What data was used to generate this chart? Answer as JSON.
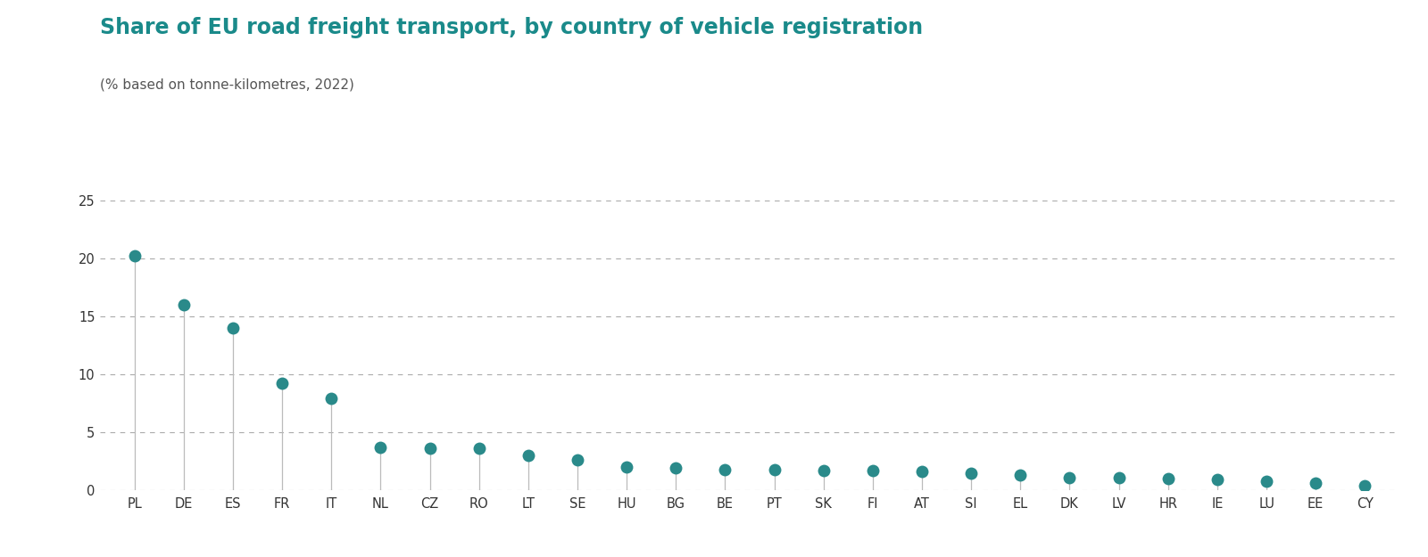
{
  "title": "Share of EU road freight transport, by country of vehicle registration",
  "subtitle": "(% based on tonne-kilometres, 2022)",
  "title_color": "#1a8a8a",
  "subtitle_color": "#555555",
  "categories": [
    "PL",
    "DE",
    "ES",
    "FR",
    "IT",
    "NL",
    "CZ",
    "RO",
    "LT",
    "SE",
    "HU",
    "BG",
    "BE",
    "PT",
    "SK",
    "FI",
    "AT",
    "SI",
    "EL",
    "DK",
    "LV",
    "HR",
    "IE",
    "LU",
    "EE",
    "CY"
  ],
  "values": [
    20.2,
    16.0,
    14.0,
    9.2,
    7.9,
    3.7,
    3.6,
    3.6,
    3.0,
    2.6,
    2.0,
    1.9,
    1.8,
    1.8,
    1.7,
    1.7,
    1.6,
    1.5,
    1.3,
    1.1,
    1.1,
    1.0,
    0.9,
    0.8,
    0.6,
    0.4
  ],
  "dot_color": "#2a8a8a",
  "stem_color": "#bbbbbb",
  "background_color": "#ffffff",
  "grid_color": "#aaaaaa",
  "ylim": [
    0,
    25
  ],
  "yticks": [
    0,
    5,
    10,
    15,
    20,
    25
  ],
  "title_fontsize": 17,
  "subtitle_fontsize": 11,
  "tick_fontsize": 10.5,
  "dot_size": 100
}
